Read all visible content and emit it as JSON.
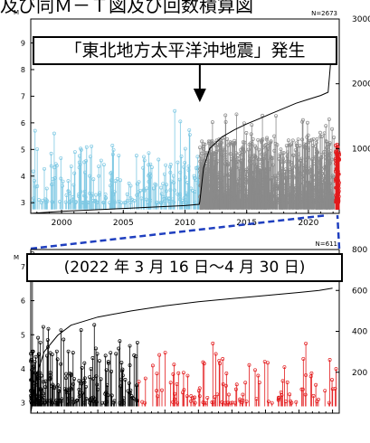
{
  "page": {
    "title": "及び同Ｍ－Ｔ図及び回数積算図"
  },
  "annotations": {
    "top_label": "「東北地方太平洋沖地震」発生",
    "bottom_label": "(2022 年 3 月 16 日～4 月 30 日)"
  },
  "colors": {
    "pre_2011": "#7ec8e3",
    "post_2011": "#8a8a8a",
    "recent_red": "#e31a1c",
    "early_black": "#000000",
    "zoom_box": "#1f3fbf",
    "cumulative_line": "#000000"
  },
  "chart_data": [
    {
      "type": "line",
      "id": "mt-long-term",
      "title": "",
      "n_label": "N=2673",
      "ylabel": "M",
      "xlabel": "",
      "x_ticks": [
        "2000",
        "2005",
        "2010",
        "2015",
        "2020"
      ],
      "y_ticks": [
        "3",
        "4",
        "5",
        "6",
        "7",
        "8",
        "9"
      ],
      "y2_ticks": [
        "1000",
        "2000",
        "3000"
      ],
      "xlim": [
        1997.5,
        2022.5
      ],
      "ylim": [
        2.6,
        9.9
      ],
      "y2lim": [
        0,
        3000
      ],
      "event_arrow_year": 2011.2,
      "series": [
        {
          "type": "cumulative",
          "x": [
            1997.5,
            2000,
            2005,
            2010,
            2011.15,
            2011.2,
            2011.5,
            2012,
            2013,
            2014,
            2015,
            2016,
            2017,
            2018,
            2019,
            2020,
            2021,
            2021.6,
            2021.8,
            2022.0,
            2022.15,
            2022.2,
            2022.3
          ],
          "y": [
            0,
            30,
            75,
            120,
            140,
            180,
            700,
            1000,
            1180,
            1290,
            1380,
            1460,
            1540,
            1620,
            1700,
            1760,
            1820,
            1870,
            2330,
            2350,
            2380,
            2620,
            2673
          ]
        }
      ]
    },
    {
      "type": "line",
      "id": "mt-recent",
      "title": "",
      "n_label": "N=611",
      "ylabel": "M",
      "xlabel": "",
      "period": "2022-03-16 to 2022-04-30",
      "y_ticks": [
        "3",
        "4",
        "5",
        "6",
        "7"
      ],
      "y2_ticks": [
        "200",
        "400",
        "600",
        "800"
      ],
      "xlim": [
        0,
        46
      ],
      "ylim": [
        2.7,
        7.5
      ],
      "y2lim": [
        0,
        800
      ],
      "series": [
        {
          "type": "cumulative",
          "x": [
            0,
            0.3,
            1,
            2,
            4,
            6,
            10,
            15,
            20,
            25,
            30,
            35,
            40,
            43,
            45
          ],
          "y": [
            0,
            60,
            200,
            300,
            380,
            430,
            470,
            500,
            525,
            545,
            560,
            575,
            590,
            600,
            611
          ]
        }
      ]
    }
  ]
}
